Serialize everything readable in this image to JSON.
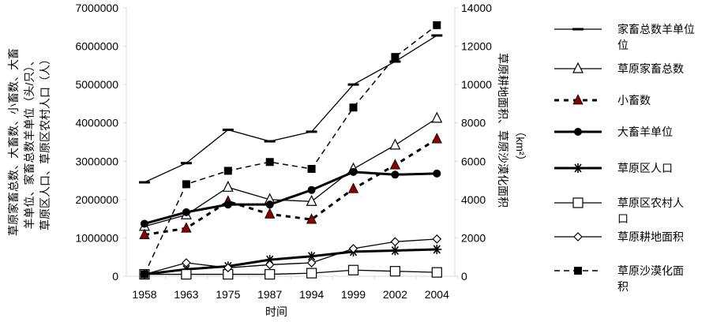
{
  "chart_data": {
    "type": "line",
    "categories": [
      "1958",
      "1963",
      "1975",
      "1987",
      "1994",
      "1999",
      "2002",
      "2004"
    ],
    "xlabel": "时间",
    "ylabel_left": [
      "草原家畜总数、大畜数、小畜数、大畜",
      "羊单位、家畜总数羊单位（头/只）、",
      "草原区人口、草原区农村人口（人）"
    ],
    "ylabel_right": [
      "草原耕地面积、草原沙漠化面积",
      "（km²）"
    ],
    "ylim_left": [
      0,
      7000000
    ],
    "yticks_left": [
      "0",
      "1000000",
      "2000000",
      "3000000",
      "4000000",
      "5000000",
      "6000000",
      "7000000"
    ],
    "ylim_right": [
      0,
      14000
    ],
    "yticks_right": [
      "0",
      "2000",
      "4000",
      "6000",
      "8000",
      "10000",
      "12000",
      "14000"
    ],
    "grid": false,
    "legend_position": "right",
    "series": [
      {
        "name": "家畜总数羊单位",
        "legend_lines": [
          "家畜总数羊单位",
          "位"
        ],
        "axis": "left",
        "marker": "dash",
        "line": "solid",
        "width": 1.3,
        "values": [
          2450000,
          2950000,
          3820000,
          3520000,
          3770000,
          5000000,
          5600000,
          6280000
        ]
      },
      {
        "name": "草原家畜总数",
        "legend_lines": [
          "草原家畜总数"
        ],
        "axis": "left",
        "marker": "triangle-open",
        "line": "solid",
        "width": 1.3,
        "values": [
          1300000,
          1600000,
          2320000,
          2000000,
          1950000,
          2800000,
          3420000,
          4120000
        ]
      },
      {
        "name": "小畜数",
        "legend_lines": [
          "小畜数"
        ],
        "axis": "left",
        "marker": "triangle-filled",
        "color": "#8b0000",
        "line": "dashed-bold",
        "width": 3,
        "values": [
          1080000,
          1250000,
          1950000,
          1620000,
          1480000,
          2280000,
          2900000,
          3580000
        ]
      },
      {
        "name": "大畜羊单位",
        "legend_lines": [
          "大畜羊单位"
        ],
        "axis": "left",
        "marker": "circle",
        "line": "solid",
        "width": 3,
        "values": [
          1370000,
          1670000,
          1870000,
          1870000,
          2250000,
          2720000,
          2650000,
          2680000
        ]
      },
      {
        "name": "草原区人口",
        "legend_lines": [
          "草原区人口"
        ],
        "axis": "left",
        "marker": "asterisk",
        "line": "solid",
        "width": 3,
        "values": [
          50000,
          180000,
          260000,
          430000,
          520000,
          640000,
          670000,
          700000
        ]
      },
      {
        "name": "草原区农村人口",
        "legend_lines": [
          "草原区农村人",
          "口"
        ],
        "axis": "left",
        "marker": "square-open",
        "line": "solid",
        "width": 1.3,
        "values": [
          50000,
          50000,
          50000,
          50000,
          80000,
          160000,
          130000,
          100000
        ]
      },
      {
        "name": "草原耕地面积",
        "legend_lines": [
          "草原耕地面积"
        ],
        "axis": "right",
        "marker": "diamond-open",
        "line": "solid",
        "width": 1.3,
        "values": [
          100,
          700,
          440,
          600,
          700,
          1440,
          1800,
          1940
        ]
      },
      {
        "name": "草原沙漠化面积",
        "legend_lines": [
          "草原沙漠化面",
          "积"
        ],
        "axis": "right",
        "marker": "square-filled",
        "line": "dashed",
        "width": 1.5,
        "values": [
          100,
          4800,
          5500,
          5960,
          5600,
          8800,
          11440,
          13100
        ]
      }
    ]
  }
}
